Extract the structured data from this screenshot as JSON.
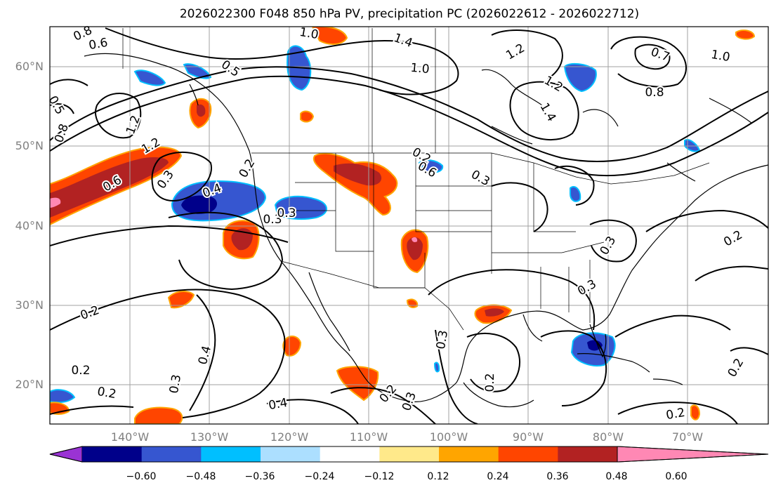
{
  "title": "2026022300 F048 850 hPa PV, precipitation PC (2026022612 - 2026022712)",
  "map": {
    "lat_ticks": [
      "60°N",
      "50°N",
      "40°N",
      "30°N",
      "20°N"
    ],
    "lon_ticks": [
      "140°W",
      "130°W",
      "120°W",
      "110°W",
      "100°W",
      "90°W",
      "80°W",
      "70°W"
    ],
    "contour_color": "#000000",
    "contour_labels": [
      "0.8",
      "0.6",
      "1.0",
      "1.4",
      "1.0",
      "1.2",
      "0.7",
      "1.0",
      "0.8",
      "0.5",
      "1.2",
      "1.2",
      "1.4",
      "0.8",
      "0.5",
      "1.2",
      "0.6",
      "0.3",
      "0.4",
      "0.2",
      "0.3",
      "0.6",
      "0.3",
      "0.3",
      "0.2",
      "0.2",
      "0.3",
      "0.4",
      "0.3",
      "0.2",
      "0.2",
      "0.3",
      "0.4",
      "0.3",
      "0.2",
      "0.3",
      "0.2",
      "0.2",
      "0.2",
      "0.2"
    ]
  },
  "colorbar": {
    "colors": [
      "#9a33d4",
      "#00008a",
      "#3656d0",
      "#00bfff",
      "#acdfff",
      "#ffffff",
      "#ffe98a",
      "#ffa500",
      "#ff4500",
      "#b22222",
      "#ff88b4"
    ],
    "labels": [
      "−0.60",
      "−0.48",
      "−0.36",
      "−0.24",
      "−0.12",
      "0.12",
      "0.24",
      "0.36",
      "0.48",
      "0.60"
    ]
  }
}
